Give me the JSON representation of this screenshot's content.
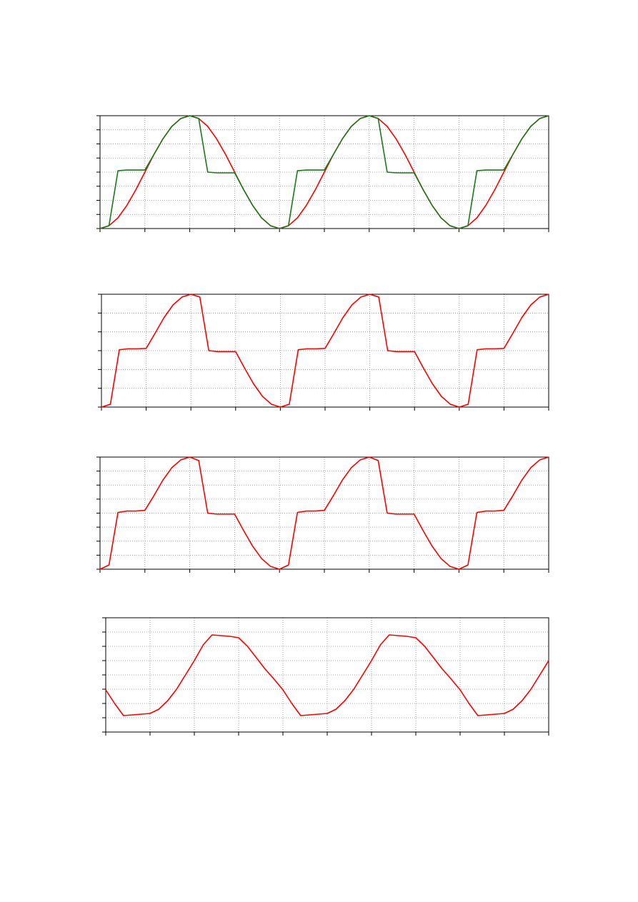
{
  "chart_data": [
    {
      "type": "line",
      "grid": true,
      "xlim": [
        0,
        10
      ],
      "xticks": [
        0,
        1,
        2,
        3,
        4,
        5,
        6,
        7,
        8,
        9,
        10
      ],
      "ylim": [
        0,
        8
      ],
      "yticks": [
        0,
        1,
        2,
        3,
        4,
        5,
        6,
        7,
        8
      ],
      "x": [
        0,
        0.2,
        0.4,
        0.6,
        0.8,
        1,
        1.2,
        1.4,
        1.6,
        1.8,
        2,
        2.2,
        2.4,
        2.6,
        2.8,
        3,
        3.2,
        3.4,
        3.6,
        3.8,
        4,
        4.2,
        4.4,
        4.6,
        4.8,
        5,
        5.2,
        5.4,
        5.6,
        5.8,
        6,
        6.2,
        6.4,
        6.6,
        6.8,
        7,
        7.2,
        7.4,
        7.6,
        7.8,
        8,
        8.2,
        8.4,
        8.6,
        8.8,
        9,
        9.2,
        9.4,
        9.6,
        9.8,
        10
      ],
      "series": [
        {
          "color": "#ff0000",
          "values": [
            0,
            0.2,
            0.76,
            1.65,
            2.76,
            4,
            5.24,
            6.35,
            7.24,
            7.8,
            8,
            7.8,
            7.24,
            6.35,
            5.24,
            4,
            2.76,
            1.65,
            0.76,
            0.2,
            0,
            0.2,
            0.76,
            1.65,
            2.76,
            4,
            5.24,
            6.35,
            7.24,
            7.8,
            8,
            7.8,
            7.24,
            6.35,
            5.24,
            4,
            2.76,
            1.65,
            0.76,
            0.2,
            0,
            0.2,
            0.76,
            1.65,
            2.76,
            4,
            5.24,
            6.35,
            7.24,
            7.8,
            8
          ]
        },
        {
          "color": "#1a7a1a",
          "values": [
            0,
            0.2,
            4.1,
            4.15,
            4.15,
            4.15,
            5.24,
            6.35,
            7.24,
            7.8,
            8,
            7.8,
            4,
            3.95,
            3.95,
            3.95,
            2.76,
            1.65,
            0.76,
            0.2,
            0,
            0.2,
            4.1,
            4.15,
            4.15,
            4.15,
            5.24,
            6.35,
            7.24,
            7.8,
            8,
            7.8,
            4,
            3.95,
            3.95,
            3.95,
            2.76,
            1.65,
            0.76,
            0.2,
            0,
            0.2,
            4.1,
            4.15,
            4.15,
            4.15,
            5.24,
            6.35,
            7.24,
            7.8,
            8
          ]
        }
      ]
    },
    {
      "type": "line",
      "grid": true,
      "xlim": [
        0,
        10
      ],
      "xticks": [
        0,
        1,
        2,
        3,
        4,
        5,
        6,
        7,
        8,
        9,
        10
      ],
      "ylim": [
        0,
        6
      ],
      "yticks": [
        0,
        1,
        2,
        3,
        4,
        5,
        6
      ],
      "x": [
        0,
        0.2,
        0.4,
        0.6,
        0.8,
        1,
        1.2,
        1.4,
        1.6,
        1.8,
        2,
        2.2,
        2.4,
        2.6,
        2.8,
        3,
        3.2,
        3.4,
        3.6,
        3.8,
        4,
        4.2,
        4.4,
        4.6,
        4.8,
        5,
        5.2,
        5.4,
        5.6,
        5.8,
        6,
        6.2,
        6.4,
        6.6,
        6.8,
        7,
        7.2,
        7.4,
        7.6,
        7.8,
        8,
        8.2,
        8.4,
        8.6,
        8.8,
        9,
        9.2,
        9.4,
        9.6,
        9.8,
        10
      ],
      "series": [
        {
          "color": "#ff0000",
          "values": [
            0,
            0.15,
            3.05,
            3.1,
            3.1,
            3.12,
            3.93,
            4.76,
            5.43,
            5.85,
            6,
            5.85,
            3,
            2.95,
            2.95,
            2.95,
            2.07,
            1.24,
            0.57,
            0.15,
            0,
            0.15,
            3.05,
            3.1,
            3.1,
            3.12,
            3.93,
            4.76,
            5.43,
            5.85,
            6,
            5.85,
            3,
            2.95,
            2.95,
            2.95,
            2.07,
            1.24,
            0.57,
            0.15,
            0,
            0.15,
            3.05,
            3.1,
            3.1,
            3.12,
            3.93,
            4.76,
            5.43,
            5.85,
            6
          ]
        }
      ]
    },
    {
      "type": "line",
      "grid": true,
      "xlim": [
        0,
        10
      ],
      "xticks": [
        0,
        1,
        2,
        3,
        4,
        5,
        6,
        7,
        8,
        9,
        10
      ],
      "ylim": [
        0,
        8
      ],
      "yticks": [
        0,
        1,
        2,
        3,
        4,
        5,
        6,
        7,
        8
      ],
      "x": [
        0,
        0.2,
        0.4,
        0.6,
        0.8,
        1,
        1.2,
        1.4,
        1.6,
        1.8,
        2,
        2.2,
        2.4,
        2.6,
        2.8,
        3,
        3.2,
        3.4,
        3.6,
        3.8,
        4,
        4.2,
        4.4,
        4.6,
        4.8,
        5,
        5.2,
        5.4,
        5.6,
        5.8,
        6,
        6.2,
        6.4,
        6.6,
        6.8,
        7,
        7.2,
        7.4,
        7.6,
        7.8,
        8,
        8.2,
        8.4,
        8.6,
        8.8,
        9,
        9.2,
        9.4,
        9.6,
        9.8,
        10
      ],
      "series": [
        {
          "color": "#ff0000",
          "values": [
            0,
            0.3,
            4.05,
            4.15,
            4.15,
            4.2,
            5.24,
            6.35,
            7.24,
            7.8,
            8,
            7.75,
            4,
            3.93,
            3.93,
            3.93,
            2.76,
            1.65,
            0.76,
            0.2,
            0,
            0.3,
            4.05,
            4.15,
            4.15,
            4.2,
            5.24,
            6.35,
            7.24,
            7.8,
            8,
            7.75,
            4,
            3.93,
            3.93,
            3.93,
            2.76,
            1.65,
            0.76,
            0.2,
            0,
            0.3,
            4.05,
            4.15,
            4.15,
            4.2,
            5.24,
            6.35,
            7.24,
            7.8,
            8
          ]
        }
      ]
    },
    {
      "type": "line",
      "grid": true,
      "xlim": [
        0,
        10
      ],
      "xticks": [
        0,
        1,
        2,
        3,
        4,
        5,
        6,
        7,
        8,
        9,
        10
      ],
      "ylim": [
        0,
        8
      ],
      "yticks": [
        0,
        1,
        2,
        3,
        4,
        5,
        6,
        7,
        8
      ],
      "x": [
        0,
        0.2,
        0.4,
        0.6,
        0.8,
        1,
        1.2,
        1.4,
        1.6,
        1.8,
        2,
        2.2,
        2.4,
        2.6,
        2.8,
        3,
        3.2,
        3.4,
        3.6,
        3.8,
        4,
        4.2,
        4.4,
        4.6,
        4.8,
        5,
        5.2,
        5.4,
        5.6,
        5.8,
        6,
        6.2,
        6.4,
        6.6,
        6.8,
        7,
        7.2,
        7.4,
        7.6,
        7.8,
        8,
        8.2,
        8.4,
        8.6,
        8.8,
        9,
        9.2,
        9.4,
        9.6,
        9.8,
        10
      ],
      "series": [
        {
          "color": "#ff0000",
          "values": [
            2.95,
            2,
            1.15,
            1.2,
            1.25,
            1.3,
            1.6,
            2.2,
            3,
            4,
            5,
            6.1,
            6.8,
            6.75,
            6.7,
            6.6,
            6,
            5.2,
            4.4,
            3.7,
            2.95,
            2,
            1.15,
            1.2,
            1.25,
            1.3,
            1.6,
            2.2,
            3,
            4,
            5,
            6.1,
            6.8,
            6.75,
            6.7,
            6.6,
            6,
            5.2,
            4.4,
            3.7,
            2.95,
            2,
            1.15,
            1.2,
            1.25,
            1.3,
            1.6,
            2.2,
            3,
            4,
            5
          ]
        }
      ]
    }
  ]
}
